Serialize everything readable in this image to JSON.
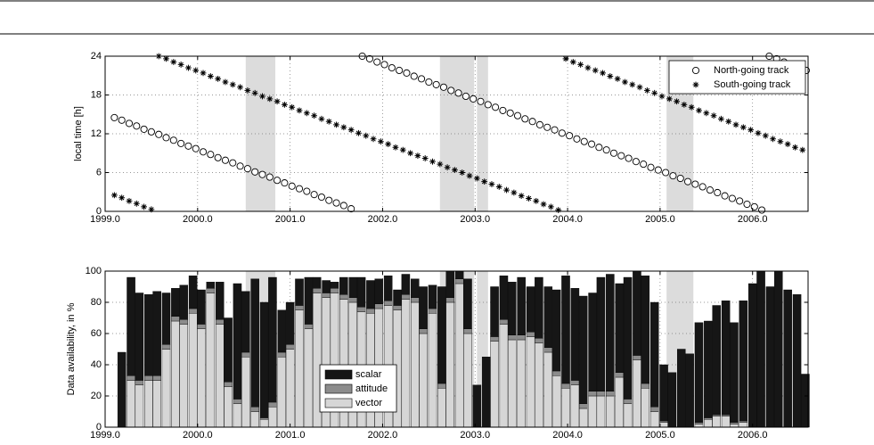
{
  "chart_data": [
    {
      "type": "scatter",
      "ylabel": "local time [h]",
      "xlim": [
        1999.0,
        2006.6
      ],
      "ylim": [
        0,
        24
      ],
      "xticks": [
        {
          "value": 1999,
          "label": "1999.0"
        },
        {
          "value": 2000,
          "label": "2000.0"
        },
        {
          "value": 2001,
          "label": "2001.0"
        },
        {
          "value": 2002,
          "label": "2002.0"
        },
        {
          "value": 2003,
          "label": "2003.0"
        },
        {
          "value": 2004,
          "label": "2004.0"
        },
        {
          "value": 2005,
          "label": "2005.0"
        },
        {
          "value": 2006,
          "label": "2006.0"
        }
      ],
      "yticks": [
        0,
        6,
        12,
        18,
        24
      ],
      "grid": true,
      "legend": "upper right",
      "shaded_spans": [
        [
          2000.52,
          2000.84
        ],
        [
          2002.62,
          2002.99
        ],
        [
          2003.02,
          2003.14
        ],
        [
          2005.07,
          2005.36
        ]
      ],
      "series": [
        {
          "name": "North-going track",
          "marker": "circle",
          "color": "#000000",
          "x": [
            1999.1,
            1999.18,
            1999.26,
            1999.34,
            1999.42,
            1999.5,
            1999.58,
            1999.66,
            1999.74,
            1999.82,
            1999.9,
            1999.98,
            2000.06,
            2000.14,
            2000.22,
            2000.3,
            2000.38,
            2000.46,
            2000.54,
            2000.62,
            2000.7,
            2000.78,
            2000.86,
            2000.94,
            2001.02,
            2001.1,
            2001.18,
            2001.26,
            2001.34,
            2001.42,
            2001.5,
            2001.58,
            2001.66,
            2001.78,
            2001.86,
            2001.94,
            2002.02,
            2002.1,
            2002.18,
            2002.26,
            2002.34,
            2002.42,
            2002.5,
            2002.58,
            2002.66,
            2002.74,
            2002.82,
            2002.9,
            2002.98,
            2003.06,
            2003.14,
            2003.22,
            2003.3,
            2003.38,
            2003.46,
            2003.54,
            2003.62,
            2003.7,
            2003.78,
            2003.86,
            2003.94,
            2004.02,
            2004.1,
            2004.18,
            2004.26,
            2004.34,
            2004.42,
            2004.5,
            2004.58,
            2004.66,
            2004.74,
            2004.82,
            2004.9,
            2004.98,
            2005.06,
            2005.14,
            2005.22,
            2005.3,
            2005.38,
            2005.46,
            2005.54,
            2005.62,
            2005.7,
            2005.78,
            2005.86,
            2005.94,
            2006.02,
            2006.1,
            2006.18,
            2006.26,
            2006.34,
            2006.42,
            2006.5,
            2006.58
          ],
          "values": [
            14.5,
            14.1,
            13.6,
            13.2,
            12.7,
            12.3,
            11.9,
            11.4,
            11.0,
            10.5,
            10.1,
            9.7,
            9.2,
            8.8,
            8.3,
            7.9,
            7.5,
            7.0,
            6.6,
            6.1,
            5.7,
            5.3,
            4.8,
            4.4,
            3.9,
            3.5,
            3.1,
            2.6,
            2.2,
            1.7,
            1.3,
            0.9,
            0.4,
            24.0,
            23.6,
            23.1,
            22.7,
            22.2,
            21.8,
            21.4,
            20.9,
            20.5,
            20.0,
            19.6,
            19.2,
            18.7,
            18.3,
            17.8,
            17.4,
            17.0,
            16.5,
            16.1,
            15.6,
            15.2,
            14.8,
            14.3,
            13.9,
            13.4,
            13.0,
            12.6,
            12.1,
            11.7,
            11.2,
            10.8,
            10.4,
            9.9,
            9.5,
            9.0,
            8.6,
            8.2,
            7.7,
            7.3,
            6.8,
            6.4,
            6.0,
            5.5,
            5.1,
            4.6,
            4.2,
            3.8,
            3.3,
            2.9,
            2.4,
            2.0,
            1.6,
            1.1,
            0.7,
            0.2,
            24.0,
            23.6,
            23.1,
            22.7,
            22.2,
            21.8
          ]
        },
        {
          "name": "South-going track",
          "marker": "asterisk",
          "color": "#000000",
          "x": [
            1999.1,
            1999.18,
            1999.26,
            1999.34,
            1999.42,
            1999.5,
            1999.58,
            1999.66,
            1999.74,
            1999.82,
            1999.9,
            1999.98,
            2000.06,
            2000.14,
            2000.22,
            2000.3,
            2000.38,
            2000.46,
            2000.54,
            2000.62,
            2000.7,
            2000.78,
            2000.86,
            2000.94,
            2001.02,
            2001.1,
            2001.18,
            2001.26,
            2001.34,
            2001.42,
            2001.5,
            2001.58,
            2001.66,
            2001.74,
            2001.82,
            2001.9,
            2001.98,
            2002.06,
            2002.14,
            2002.22,
            2002.3,
            2002.38,
            2002.46,
            2002.54,
            2002.62,
            2002.7,
            2002.78,
            2002.86,
            2002.94,
            2003.02,
            2003.1,
            2003.18,
            2003.26,
            2003.34,
            2003.42,
            2003.5,
            2003.58,
            2003.66,
            2003.74,
            2003.82,
            2003.9,
            2003.98,
            2004.06,
            2004.14,
            2004.22,
            2004.3,
            2004.38,
            2004.46,
            2004.54,
            2004.62,
            2004.7,
            2004.78,
            2004.86,
            2004.94,
            2005.02,
            2005.1,
            2005.18,
            2005.26,
            2005.34,
            2005.42,
            2005.5,
            2005.58,
            2005.66,
            2005.74,
            2005.82,
            2005.9,
            2005.98,
            2006.06,
            2006.14,
            2006.22,
            2006.3,
            2006.38,
            2006.46,
            2006.54
          ],
          "values": [
            2.5,
            2.1,
            1.6,
            1.2,
            0.7,
            0.3,
            24.0,
            23.6,
            23.1,
            22.7,
            22.2,
            21.8,
            21.4,
            20.9,
            20.5,
            20.0,
            19.6,
            19.2,
            18.7,
            18.3,
            17.8,
            17.4,
            17.0,
            16.5,
            16.1,
            15.6,
            15.2,
            14.8,
            14.3,
            13.9,
            13.4,
            13.0,
            12.6,
            12.1,
            11.7,
            11.2,
            10.8,
            10.4,
            9.9,
            9.5,
            9.0,
            8.6,
            8.2,
            7.7,
            7.3,
            6.8,
            6.4,
            6.0,
            5.5,
            5.1,
            4.6,
            4.2,
            3.8,
            3.3,
            2.9,
            2.4,
            2.0,
            1.6,
            1.1,
            0.7,
            0.2,
            23.6,
            23.1,
            22.7,
            22.2,
            21.8,
            21.4,
            20.9,
            20.5,
            20.0,
            19.6,
            19.2,
            18.7,
            18.3,
            17.8,
            17.4,
            17.0,
            16.5,
            16.1,
            15.6,
            15.2,
            14.8,
            14.3,
            13.9,
            13.4,
            13.0,
            12.6,
            12.1,
            11.7,
            11.2,
            10.8,
            10.4,
            9.9,
            9.5
          ]
        }
      ]
    },
    {
      "type": "bar",
      "stacked": true,
      "ylabel": "Data availability, in %",
      "xlim": [
        1999.0,
        2006.6
      ],
      "ylim": [
        0,
        100
      ],
      "xticks": [
        {
          "value": 1999,
          "label": "1999.0"
        },
        {
          "value": 2000,
          "label": "2000.0"
        },
        {
          "value": 2001,
          "label": "2001.0"
        },
        {
          "value": 2002,
          "label": "2002.0"
        },
        {
          "value": 2003,
          "label": "2003.0"
        },
        {
          "value": 2004,
          "label": "2004.0"
        },
        {
          "value": 2005,
          "label": "2005.0"
        },
        {
          "value": 2006,
          "label": "2006.0"
        }
      ],
      "yticks": [
        0,
        20,
        40,
        60,
        80,
        100
      ],
      "grid": true,
      "legend": "lower center",
      "shaded_spans": [
        [
          2000.52,
          2000.84
        ],
        [
          2002.62,
          2002.99
        ],
        [
          2003.02,
          2003.14
        ],
        [
          2005.07,
          2005.36
        ]
      ],
      "x": [
        1999.18,
        1999.28,
        1999.37,
        1999.47,
        1999.56,
        1999.66,
        1999.76,
        1999.85,
        1999.95,
        2000.04,
        2000.14,
        2000.24,
        2000.33,
        2000.43,
        2000.52,
        2000.62,
        2000.72,
        2000.81,
        2000.91,
        2001.0,
        2001.1,
        2001.2,
        2001.29,
        2001.39,
        2001.48,
        2001.58,
        2001.68,
        2001.77,
        2001.87,
        2001.96,
        2002.06,
        2002.16,
        2002.25,
        2002.35,
        2002.44,
        2002.54,
        2002.64,
        2002.73,
        2002.83,
        2002.92,
        2003.02,
        2003.12,
        2003.21,
        2003.31,
        2003.4,
        2003.5,
        2003.6,
        2003.69,
        2003.79,
        2003.88,
        2003.98,
        2004.08,
        2004.17,
        2004.27,
        2004.36,
        2004.46,
        2004.56,
        2004.65,
        2004.75,
        2004.84,
        2004.94,
        2005.04,
        2005.13,
        2005.23,
        2005.32,
        2005.42,
        2005.52,
        2005.61,
        2005.71,
        2005.8,
        2005.9,
        2006.0,
        2006.09,
        2006.19,
        2006.28,
        2006.38,
        2006.48,
        2006.57
      ],
      "series": [
        {
          "name": "vector",
          "color": "#d6d6d6",
          "values": [
            0,
            30,
            27,
            30,
            30,
            50,
            68,
            66,
            73,
            63,
            86,
            66,
            26,
            15,
            45,
            10,
            5,
            13,
            45,
            50,
            75,
            63,
            86,
            83,
            86,
            82,
            80,
            74,
            73,
            76,
            78,
            75,
            82,
            80,
            60,
            73,
            25,
            80,
            92,
            60,
            0,
            0,
            55,
            66,
            56,
            56,
            58,
            54,
            48,
            33,
            25,
            27,
            12,
            20,
            20,
            20,
            32,
            15,
            43,
            25,
            10,
            3,
            0,
            0,
            0,
            2,
            5,
            7,
            7,
            2,
            3,
            0,
            0,
            0,
            0,
            0,
            0,
            0
          ]
        },
        {
          "name": "attitude",
          "color": "#8c8c8c",
          "values": [
            0,
            3,
            3,
            3,
            3,
            3,
            3,
            3,
            3,
            3,
            3,
            3,
            3,
            3,
            3,
            3,
            1,
            3,
            3,
            3,
            3,
            3,
            3,
            3,
            3,
            3,
            3,
            3,
            3,
            3,
            3,
            3,
            3,
            3,
            3,
            3,
            3,
            3,
            3,
            3,
            0,
            0,
            3,
            3,
            3,
            3,
            3,
            3,
            3,
            3,
            3,
            3,
            3,
            3,
            3,
            3,
            3,
            3,
            3,
            3,
            3,
            1,
            0,
            0,
            0,
            1,
            1,
            1,
            1,
            1,
            1,
            0,
            0,
            0,
            0,
            0,
            0,
            0
          ]
        },
        {
          "name": "scalar",
          "color": "#161616",
          "values": [
            48,
            63,
            56,
            52,
            54,
            33,
            18,
            22,
            21,
            22,
            4,
            24,
            41,
            74,
            39,
            82,
            74,
            80,
            27,
            27,
            17,
            30,
            7,
            8,
            4,
            11,
            13,
            19,
            18,
            16,
            16,
            10,
            13,
            12,
            27,
            15,
            62,
            17,
            5,
            32,
            27,
            45,
            32,
            28,
            34,
            37,
            29,
            39,
            39,
            52,
            69,
            59,
            69,
            63,
            73,
            75,
            57,
            78,
            54,
            69,
            67,
            36,
            35,
            50,
            47,
            64,
            62,
            70,
            73,
            64,
            77,
            92,
            100,
            90,
            100,
            88,
            85,
            34
          ]
        }
      ]
    }
  ]
}
